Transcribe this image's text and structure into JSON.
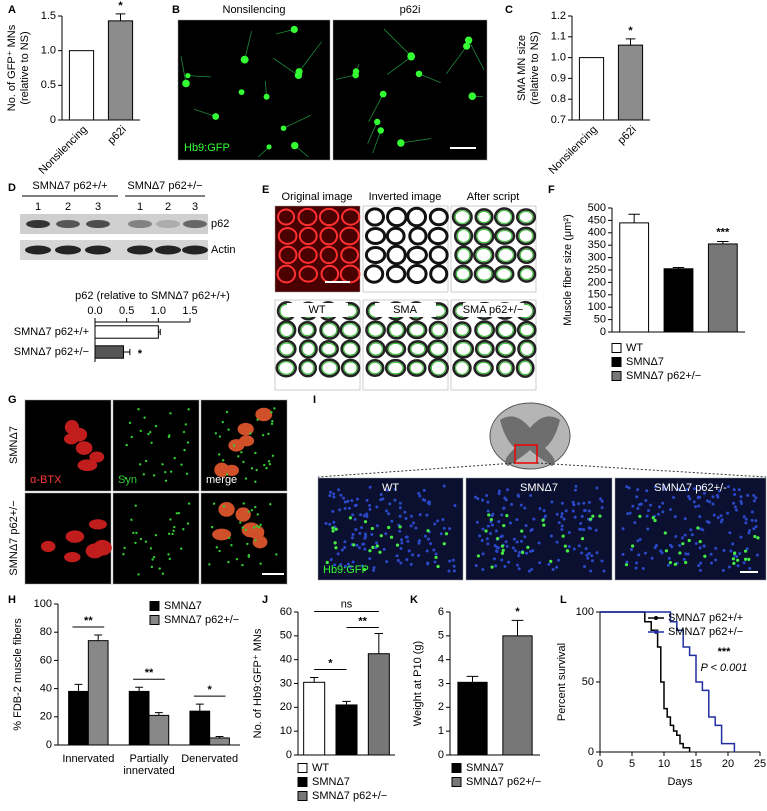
{
  "figure": {
    "panel_labels": [
      "A",
      "B",
      "C",
      "D",
      "E",
      "F",
      "G",
      "H",
      "I",
      "J",
      "K",
      "L"
    ],
    "B": {
      "images": [
        "Nonsilencing",
        "p62i"
      ],
      "stain": "Hb9:GFP"
    },
    "D": {
      "groups": [
        "SMNΔ7 p62+/+",
        "SMNΔ7 p62+/−"
      ],
      "lanes": [
        "1",
        "2",
        "3",
        "1",
        "2",
        "3"
      ],
      "bands": [
        "p62",
        "Actin"
      ]
    },
    "E": {
      "images": [
        "Original image",
        "Inverted image",
        "After script",
        "WT",
        "SMA",
        "SMA p62+/−"
      ]
    },
    "G": {
      "rows": [
        "SMNΔ7",
        "SMNΔ7 p62+/−"
      ],
      "channels": [
        "α-BTX",
        "Syn",
        "merge"
      ]
    },
    "I": {
      "images": [
        "WT",
        "SMNΔ7",
        "SMNΔ7 p62+/-"
      ],
      "stain": "Hb9:GFP"
    }
  },
  "chart_data": [
    {
      "type": "bar",
      "ylabel": [
        "No. of GFP⁺ MNs",
        "(relative to NS)"
      ],
      "categories": [
        "Nonsilencing",
        "p62i"
      ],
      "values": [
        1,
        1.43
      ],
      "errors": [
        null,
        0.1
      ],
      "colors": [
        "#ffffff",
        "#8c8c8c"
      ],
      "ylim": [
        0,
        1.5
      ],
      "yticks": [
        0,
        0.5,
        {
          "value": 1,
          "label": "1.0"
        },
        1.5
      ],
      "annotations": [
        "*"
      ]
    },
    {
      "type": "bar",
      "ylabel": [
        "SMA MN size",
        "(relative to NS)"
      ],
      "categories": [
        "Nonsilencing",
        "p62i"
      ],
      "values": [
        1,
        1.06
      ],
      "errors": [
        null,
        0.03
      ],
      "colors": [
        "#ffffff",
        "#8c8c8c"
      ],
      "ylim": [
        0.7,
        1.2
      ],
      "yticks": [
        0.7,
        0.8,
        0.9,
        {
          "value": 1,
          "label": "1.0"
        },
        1.1,
        1.2
      ],
      "annotations": [
        "*"
      ]
    },
    {
      "type": "barh",
      "title": "p62 (relative to SMNΔ7 p62+/+)",
      "categories": [
        "SMNΔ7 p62+/+",
        "SMNΔ7 p62+/−"
      ],
      "values": [
        1,
        0.45
      ],
      "errors": [
        0.03,
        0.1
      ],
      "colors": [
        "#ffffff",
        "#555555"
      ],
      "xlim": [
        0,
        1.5
      ],
      "xticks": [
        {
          "value": 0,
          "label": "0.0"
        },
        0.5,
        {
          "value": 1,
          "label": "1.0"
        },
        1.5
      ],
      "annotations": [
        "*"
      ]
    },
    {
      "type": "bar",
      "ylabel": [
        "Muscle fiber size (μm²)"
      ],
      "series": [
        {
          "name": "WT",
          "color": "#ffffff",
          "values": [
            440
          ],
          "errors": [
            35
          ]
        },
        {
          "name": "SMNΔ7",
          "color": "#000000",
          "values": [
            255
          ],
          "errors": [
            5
          ]
        },
        {
          "name": "SMNΔ7 p62+/−",
          "color": "#777777",
          "values": [
            355
          ],
          "errors": [
            10
          ]
        }
      ],
      "ylim": [
        0,
        500
      ],
      "yticks": [
        0,
        50,
        100,
        150,
        200,
        250,
        300,
        350,
        400,
        450,
        500
      ],
      "annotations": [
        "***"
      ]
    },
    {
      "type": "bar",
      "ylabel": [
        "% FDB-2 muscle fibers"
      ],
      "categories": [
        [
          "Innervated"
        ],
        [
          "Partially",
          "innervated"
        ],
        [
          "Denervated"
        ]
      ],
      "series": [
        {
          "name": "SMNΔ7",
          "color": "#000000",
          "values": [
            38,
            38,
            24
          ],
          "errors": [
            5,
            3,
            5
          ]
        },
        {
          "name": "SMNΔ7 p62+/−",
          "color": "#888888",
          "values": [
            74,
            21,
            5
          ],
          "errors": [
            4,
            2,
            1
          ]
        }
      ],
      "ylim": [
        0,
        100
      ],
      "yticks": [
        0,
        20,
        40,
        60,
        80,
        100
      ],
      "legend": "top-right",
      "annotations": [
        "**",
        "**",
        "*"
      ]
    },
    {
      "type": "bar",
      "ylabel": [
        "No. of Hb9:GFP⁺ MNs"
      ],
      "series": [
        {
          "name": "WT",
          "color": "#ffffff",
          "values": [
            30.5
          ],
          "errors": [
            2
          ]
        },
        {
          "name": "SMNΔ7",
          "color": "#000000",
          "values": [
            21
          ],
          "errors": [
            1.5
          ]
        },
        {
          "name": "SMNΔ7 p62+/−",
          "color": "#777777",
          "values": [
            42.5
          ],
          "errors": [
            8.5
          ]
        }
      ],
      "ylim": [
        0,
        60
      ],
      "yticks": [
        0,
        10,
        20,
        30,
        40,
        50,
        60
      ],
      "annotations": [
        "*",
        "**",
        "ns"
      ]
    },
    {
      "type": "bar",
      "ylabel": [
        "Weight at P10 (g)"
      ],
      "series": [
        {
          "name": "SMNΔ7",
          "color": "#000000",
          "values": [
            3.05
          ],
          "errors": [
            0.25
          ]
        },
        {
          "name": "SMNΔ7 p62+/−",
          "color": "#777777",
          "values": [
            5
          ],
          "errors": [
            0.65
          ]
        }
      ],
      "ylim": [
        0,
        6
      ],
      "yticks": [
        0,
        1,
        2,
        3,
        4,
        5,
        6
      ],
      "annotations": [
        "*"
      ]
    },
    {
      "type": "step",
      "xlabel": "Days",
      "ylabel": [
        "Percent survival"
      ],
      "series": [
        {
          "name": "SMNΔ7 p62+/+",
          "color": "#000000",
          "x": [
            0,
            7,
            8,
            9,
            9.5,
            10,
            10.5,
            11,
            11.5,
            12,
            12.5,
            13,
            14
          ],
          "values": [
            100,
            93,
            87,
            75,
            50,
            31,
            25,
            19,
            15,
            12,
            6,
            3,
            0
          ]
        },
        {
          "name": "SMNΔ7 p62+/−",
          "color": "#1f2fa0",
          "x": [
            0,
            11,
            12,
            13,
            14,
            15,
            16,
            17,
            18,
            19,
            21
          ],
          "values": [
            100,
            93,
            87,
            75,
            69,
            50,
            44,
            25,
            19,
            6,
            0
          ]
        }
      ],
      "xlim": [
        0,
        25
      ],
      "xticks": [
        0,
        5,
        10,
        15,
        20,
        25
      ],
      "ylim": [
        0,
        100
      ],
      "yticks": [
        0,
        50,
        100
      ],
      "annotations": [
        "***",
        "P < 0.001"
      ]
    }
  ]
}
